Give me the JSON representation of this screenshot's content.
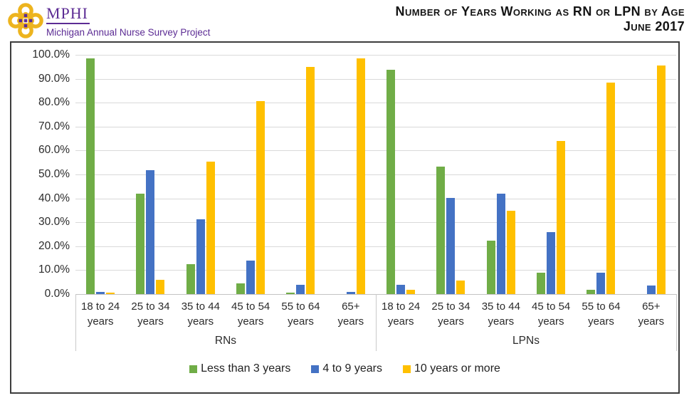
{
  "header": {
    "logo_acronym": "MPHI",
    "logo_subtitle": "Michigan Annual Nurse Survey Project",
    "title_line1": "Number of Years Working as RN or LPN by Age",
    "title_line2": "June 2017",
    "brand_purple": "#5C2C94",
    "brand_gold": "#EDB41E"
  },
  "chart_data": {
    "type": "bar",
    "title": "Number of Years Working as RN or LPN by Age",
    "subtitle": "June 2017",
    "ylabel": "",
    "xlabel": "",
    "ylim": [
      0,
      100
    ],
    "grid": true,
    "legend_position": "bottom",
    "ytick_labels": [
      "0.0%",
      "10.0%",
      "20.0%",
      "30.0%",
      "40.0%",
      "50.0%",
      "60.0%",
      "70.0%",
      "80.0%",
      "90.0%",
      "100.0%"
    ],
    "category_labels": [
      {
        "line1": "18 to 24",
        "line2": "years"
      },
      {
        "line1": "25 to 34",
        "line2": "years"
      },
      {
        "line1": "35 to 44",
        "line2": "years"
      },
      {
        "line1": "45 to 54",
        "line2": "years"
      },
      {
        "line1": "55 to 64",
        "line2": "years"
      },
      {
        "line1": "65+",
        "line2": "years"
      }
    ],
    "groups": [
      {
        "label": "RNs",
        "categories": [
          "18 to 24 years",
          "25 to 34 years",
          "35 to 44 years",
          "45 to 54 years",
          "55 to 64 years",
          "65+ years"
        ],
        "series": [
          {
            "name": "Less than 3 years",
            "color": "#70AD47",
            "values": [
              98.5,
              42.0,
              12.4,
              4.6,
              0.7,
              0.0
            ]
          },
          {
            "name": "4 to 9 years",
            "color": "#4472C4",
            "values": [
              0.8,
              51.8,
              31.3,
              14.0,
              3.9,
              1.0
            ]
          },
          {
            "name": "10 years or more",
            "color": "#FFC000",
            "values": [
              0.5,
              6.0,
              55.4,
              80.8,
              95.0,
              98.6
            ]
          }
        ]
      },
      {
        "label": "LPNs",
        "categories": [
          "18 to 24 years",
          "25 to 34 years",
          "35 to 44 years",
          "45 to 54 years",
          "55 to 64 years",
          "65+ years"
        ],
        "series": [
          {
            "name": "Less than 3 years",
            "color": "#70AD47",
            "values": [
              93.8,
              53.2,
              22.3,
              9.0,
              1.9,
              0.0
            ]
          },
          {
            "name": "4 to 9 years",
            "color": "#4472C4",
            "values": [
              4.0,
              40.3,
              42.1,
              26.0,
              9.0,
              3.6
            ]
          },
          {
            "name": "10 years or more",
            "color": "#FFC000",
            "values": [
              1.8,
              5.7,
              34.7,
              63.9,
              88.3,
              95.4
            ]
          }
        ]
      }
    ],
    "legend": [
      {
        "label": "Less than 3 years",
        "color": "#70AD47"
      },
      {
        "label": "4 to 9 years",
        "color": "#4472C4"
      },
      {
        "label": "10 years or more",
        "color": "#FFC000"
      }
    ]
  }
}
